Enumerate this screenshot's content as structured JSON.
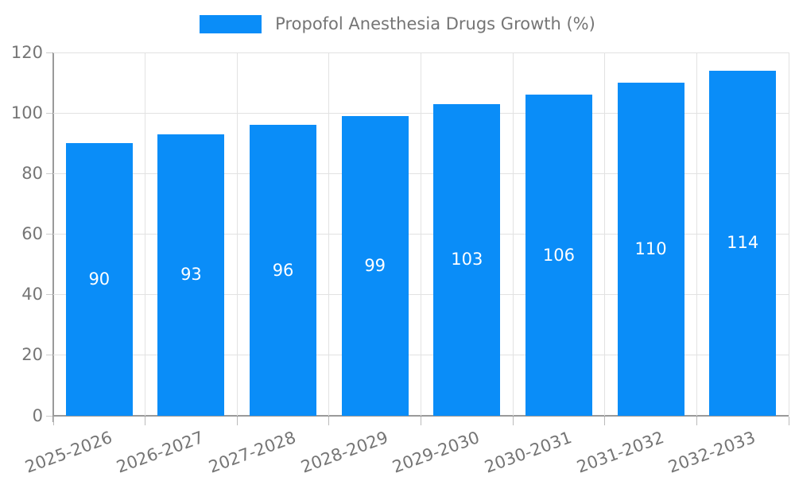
{
  "legend": {
    "label": "Propofol Anesthesia Drugs Growth (%)"
  },
  "chart_data": {
    "type": "bar",
    "title": "Propofol Anesthesia Drugs Growth (%)",
    "categories": [
      "2025-2026",
      "2026-2027",
      "2027-2028",
      "2028-2029",
      "2029-2030",
      "2030-2031",
      "2031-2032",
      "2032-2033"
    ],
    "values": [
      90,
      93,
      96,
      99,
      103,
      106,
      110,
      114
    ],
    "xlabel": "",
    "ylabel": "",
    "ylim": [
      0,
      120
    ],
    "yticks": [
      0,
      20,
      40,
      60,
      80,
      100,
      120
    ],
    "grid": true,
    "legend_position": "top",
    "colors": {
      "bar": "#0a8df8",
      "bar_value_label": "#ffffff",
      "axis_line": "#9a9a9a",
      "gridline": "#e2e2e2",
      "tick_text": "#757575"
    }
  }
}
